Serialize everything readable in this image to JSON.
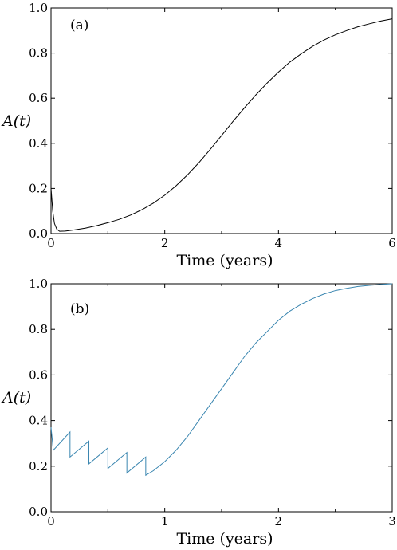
{
  "chart_data": [
    {
      "type": "line",
      "panel_label": "(a)",
      "xlabel": "Time (years)",
      "ylabel": "A(t)",
      "xlim": [
        0,
        6
      ],
      "ylim": [
        0,
        1.0
      ],
      "xticks": [
        0,
        2,
        4,
        6
      ],
      "xtick_labels": [
        "0",
        "2",
        "4",
        "6"
      ],
      "yticks": [
        0,
        0.2,
        0.4,
        0.6,
        0.8,
        1.0
      ],
      "ytick_labels": [
        "0.0",
        "0.2",
        "0.4",
        "0.6",
        "0.8",
        "1.0"
      ],
      "grid": false,
      "line_color": "#000000",
      "series": [
        {
          "x": [
            0,
            0.03,
            0.06,
            0.1,
            0.15,
            0.25,
            0.4,
            0.6,
            0.8,
            1.0,
            1.2,
            1.4,
            1.6,
            1.8,
            2.0,
            2.2,
            2.4,
            2.6,
            2.8,
            3.0,
            3.2,
            3.4,
            3.6,
            3.8,
            4.0,
            4.2,
            4.4,
            4.6,
            4.8,
            5.0,
            5.2,
            5.4,
            5.6,
            5.8,
            6.0
          ],
          "y": [
            0.2,
            0.1,
            0.045,
            0.02,
            0.01,
            0.011,
            0.016,
            0.024,
            0.035,
            0.048,
            0.063,
            0.082,
            0.106,
            0.135,
            0.17,
            0.212,
            0.26,
            0.314,
            0.373,
            0.435,
            0.497,
            0.557,
            0.614,
            0.667,
            0.716,
            0.76,
            0.797,
            0.83,
            0.858,
            0.881,
            0.9,
            0.917,
            0.93,
            0.942,
            0.952
          ]
        }
      ]
    },
    {
      "type": "line",
      "panel_label": "(b)",
      "xlabel": "Time (years)",
      "ylabel": "A(t)",
      "xlim": [
        0,
        3
      ],
      "ylim": [
        0,
        1.0
      ],
      "xticks": [
        0,
        1,
        2,
        3
      ],
      "xtick_labels": [
        "0",
        "1",
        "2",
        "3"
      ],
      "yticks": [
        0,
        0.2,
        0.4,
        0.6,
        0.8,
        1.0
      ],
      "ytick_labels": [
        "0.0",
        "0.2",
        "0.4",
        "0.6",
        "0.8",
        "1.0"
      ],
      "grid": false,
      "line_color": "#3a86b0",
      "series": [
        {
          "x": [
            0,
            0.02,
            0.167,
            0.167,
            0.333,
            0.333,
            0.5,
            0.5,
            0.667,
            0.667,
            0.833,
            0.833,
            0.9,
            1.0,
            1.1,
            1.2,
            1.3,
            1.4,
            1.5,
            1.6,
            1.7,
            1.8,
            1.9,
            2.0,
            2.1,
            2.2,
            2.3,
            2.4,
            2.5,
            2.6,
            2.7,
            2.8,
            2.9,
            3.0
          ],
          "y": [
            0.37,
            0.27,
            0.35,
            0.24,
            0.31,
            0.21,
            0.28,
            0.19,
            0.26,
            0.17,
            0.24,
            0.16,
            0.18,
            0.22,
            0.27,
            0.33,
            0.4,
            0.47,
            0.54,
            0.61,
            0.68,
            0.74,
            0.79,
            0.84,
            0.88,
            0.91,
            0.935,
            0.955,
            0.97,
            0.98,
            0.988,
            0.993,
            0.997,
            1.0
          ]
        }
      ]
    }
  ]
}
